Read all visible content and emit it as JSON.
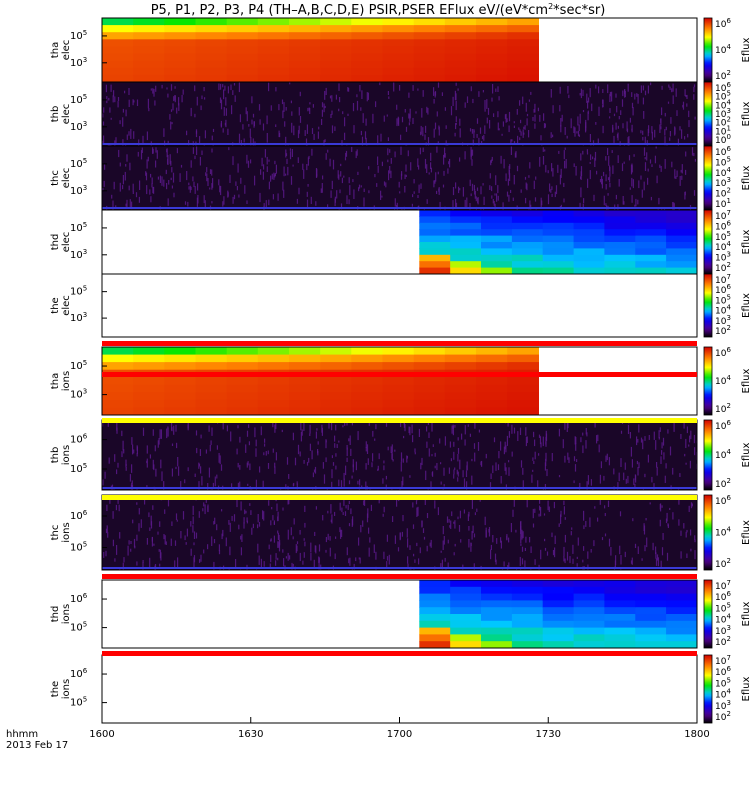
{
  "title_parts": [
    "P5, P1, P2, P3, P4 (TH–A,B,C,D,E) PSIR,PSER EFlux eV/(eV*cm",
    "2",
    "*sec*sr)"
  ],
  "chart_data": {
    "type": "heatmap",
    "x_axis": {
      "title": "hhmm",
      "date_label": "2013 Feb 17",
      "ticks": [
        "1600",
        "1630",
        "1700",
        "1730",
        "1800"
      ],
      "range": [
        "16:00",
        "18:00"
      ]
    },
    "colorbar_label": "Eflux",
    "panels": [
      {
        "label": [
          "tha",
          "elec"
        ],
        "y_ticks": [
          "10^5",
          "10^3"
        ],
        "cb_ticks": [
          "10^6",
          "10^4",
          "10^2"
        ],
        "coverage": [
          "16:00",
          "17:28"
        ],
        "style": "smooth-red"
      },
      {
        "label": [
          "thb",
          "elec"
        ],
        "y_ticks": [
          "10^5",
          "10^3"
        ],
        "cb_ticks": [
          "10^6",
          "10^5",
          "10^4",
          "10^3",
          "10^2",
          "10^1",
          "10^0"
        ],
        "coverage": [
          "16:00",
          "18:00"
        ],
        "style": "noise"
      },
      {
        "label": [
          "thc",
          "elec"
        ],
        "y_ticks": [
          "10^5",
          "10^3"
        ],
        "cb_ticks": [
          "10^6",
          "10^5",
          "10^4",
          "10^3",
          "10^2",
          "10^1"
        ],
        "coverage": [
          "16:00",
          "18:00"
        ],
        "style": "noise"
      },
      {
        "label": [
          "thd",
          "elec"
        ],
        "y_ticks": [
          "10^5",
          "10^3"
        ],
        "cb_ticks": [
          "10^7",
          "10^6",
          "10^5",
          "10^4",
          "10^3",
          "10^2"
        ],
        "coverage": [
          "17:04",
          "18:00"
        ],
        "style": "blue-green"
      },
      {
        "label": [
          "the",
          "elec"
        ],
        "y_ticks": [
          "10^5",
          "10^3"
        ],
        "cb_ticks": [
          "10^7",
          "10^6",
          "10^5",
          "10^4",
          "10^3",
          "10^2"
        ],
        "coverage": null,
        "style": "empty"
      },
      {
        "label": [
          "tha",
          "ions"
        ],
        "y_ticks": [
          "10^5",
          "10^3"
        ],
        "cb_ticks": [
          "10^6",
          "10^4",
          "10^2"
        ],
        "coverage": [
          "16:00",
          "17:28"
        ],
        "style": "smooth-red"
      },
      {
        "label": [
          "thb",
          "ions"
        ],
        "y_ticks": [
          "10^6",
          "10^5"
        ],
        "cb_ticks": [
          "10^6",
          "10^4",
          "10^2"
        ],
        "coverage": [
          "16:00",
          "18:00"
        ],
        "style": "noise"
      },
      {
        "label": [
          "thc",
          "ions"
        ],
        "y_ticks": [
          "10^6",
          "10^5"
        ],
        "cb_ticks": [
          "10^6",
          "10^4",
          "10^2"
        ],
        "coverage": [
          "16:00",
          "18:00"
        ],
        "style": "noise"
      },
      {
        "label": [
          "thd",
          "ions"
        ],
        "y_ticks": [
          "10^6",
          "10^5"
        ],
        "cb_ticks": [
          "10^7",
          "10^6",
          "10^5",
          "10^4",
          "10^3",
          "10^2"
        ],
        "coverage": [
          "17:04",
          "18:00"
        ],
        "style": "blue-green"
      },
      {
        "label": [
          "the",
          "ions"
        ],
        "y_ticks": [
          "10^6",
          "10^5"
        ],
        "cb_ticks": [
          "10^7",
          "10^6",
          "10^5",
          "10^4",
          "10^3",
          "10^2"
        ],
        "coverage": null,
        "style": "empty"
      }
    ],
    "separator_bars": [
      "red",
      "red",
      "yellow",
      "yellow",
      "red",
      "red"
    ]
  },
  "colors": {
    "red_bar": "#ff0000",
    "yellow_bar": "#ffff00",
    "noise_base": "#1a0628",
    "noise_fill": "#5a1a8a",
    "noise_line": "#3a3ad8"
  }
}
